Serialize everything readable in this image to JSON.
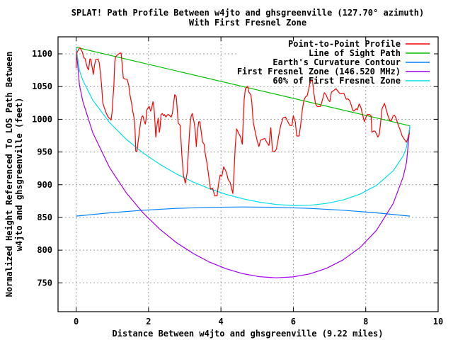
{
  "chart_data": {
    "type": "line",
    "title": "SPLAT! Path Profile Between w4jto and ghsgreenville (127.70° azimuth)",
    "subtitle": "With First Fresnel Zone",
    "xlabel": "Distance Between w4jto and ghsgreenville (9.22 miles)",
    "ylabel_line1": "Normalized Height Referenced To LOS Path Between",
    "ylabel_line2": "w4jto and ghsgreenville (feet)",
    "xlim": [
      -0.5,
      10
    ],
    "ylim": [
      706,
      1126
    ],
    "xticks": [
      0,
      2,
      4,
      6,
      8,
      10
    ],
    "yticks": [
      750,
      800,
      850,
      900,
      950,
      1000,
      1050,
      1100
    ],
    "grid": true,
    "legend_position": "top-right",
    "series": [
      {
        "name": "Point-to-Point Profile",
        "color": "#ff0000",
        "points": [
          [
            0,
            1078
          ],
          [
            0.01,
            1100
          ],
          [
            0.033,
            1102.9
          ],
          [
            0.065,
            1106.5
          ],
          [
            0.104,
            1109.4
          ],
          [
            0.13,
            1107.2
          ],
          [
            0.169,
            1102.9
          ],
          [
            0.215,
            1093.9
          ],
          [
            0.247,
            1092.8
          ],
          [
            0.28,
            1084.8
          ],
          [
            0.313,
            1078.3
          ],
          [
            0.345,
            1075.8
          ],
          [
            0.378,
            1092
          ],
          [
            0.404,
            1092
          ],
          [
            0.43,
            1083
          ],
          [
            0.475,
            1068.5
          ],
          [
            0.508,
            1083
          ],
          [
            0.54,
            1091.3
          ],
          [
            0.605,
            1092
          ],
          [
            0.638,
            1086.6
          ],
          [
            0.671,
            1070.4
          ],
          [
            0.703,
            1052.3
          ],
          [
            0.736,
            1025.2
          ],
          [
            0.768,
            1019.7
          ],
          [
            0.833,
            1008.9
          ],
          [
            0.885,
            1003.5
          ],
          [
            0.918,
            1001.7
          ],
          [
            0.964,
            998.8
          ],
          [
            0.996,
            1012.5
          ],
          [
            1.016,
            1030.6
          ],
          [
            1.042,
            1052.3
          ],
          [
            1.068,
            1088.4
          ],
          [
            1.094,
            1095.7
          ],
          [
            1.159,
            1099.3
          ],
          [
            1.211,
            1101.1
          ],
          [
            1.243,
            1101.1
          ],
          [
            1.263,
            1088.4
          ],
          [
            1.302,
            1063.1
          ],
          [
            1.354,
            1061.3
          ],
          [
            1.406,
            1061.3
          ],
          [
            1.452,
            1052.3
          ],
          [
            1.484,
            1037.8
          ],
          [
            1.536,
            1023.4
          ],
          [
            1.563,
            1012.5
          ],
          [
            1.602,
            1001.7
          ],
          [
            1.628,
            983.6
          ],
          [
            1.647,
            951
          ],
          [
            1.68,
            951
          ],
          [
            1.712,
            965.5
          ],
          [
            1.745,
            980
          ],
          [
            1.777,
            994.4
          ],
          [
            1.81,
            1003.5
          ],
          [
            1.842,
            1005.3
          ],
          [
            1.875,
            998
          ],
          [
            1.908,
            992.6
          ],
          [
            1.927,
            998
          ],
          [
            1.953,
            1014.3
          ],
          [
            1.992,
            1017.9
          ],
          [
            2.018,
            1019.7
          ],
          [
            2.057,
            1012.5
          ],
          [
            2.083,
            1016.1
          ],
          [
            2.122,
            1027
          ],
          [
            2.148,
            1019.7
          ],
          [
            2.168,
            1005.3
          ],
          [
            2.2,
            972.7
          ],
          [
            2.233,
            990.8
          ],
          [
            2.266,
            1001.7
          ],
          [
            2.298,
            980
          ],
          [
            2.318,
            987.2
          ],
          [
            2.344,
            1007.1
          ],
          [
            2.383,
            1008.9
          ],
          [
            2.415,
            1005.3
          ],
          [
            2.441,
            1007.1
          ],
          [
            2.48,
            1003.5
          ],
          [
            2.526,
            1007.1
          ],
          [
            2.559,
            1007
          ],
          [
            2.624,
            1003.4
          ],
          [
            2.657,
            1008.8
          ],
          [
            2.722,
            1037.7
          ],
          [
            2.767,
            1034.1
          ],
          [
            2.82,
            994.3
          ],
          [
            2.872,
            990.7
          ],
          [
            2.917,
            947.3
          ],
          [
            2.963,
            914.8
          ],
          [
            3.015,
            902.1
          ],
          [
            3.067,
            918.4
          ],
          [
            3.113,
            961.8
          ],
          [
            3.145,
            990.7
          ],
          [
            3.178,
            1005.2
          ],
          [
            3.21,
            1008.8
          ],
          [
            3.262,
            994.3
          ],
          [
            3.288,
            983.5
          ],
          [
            3.321,
            958.2
          ],
          [
            3.34,
            976.2
          ],
          [
            3.386,
            996.1
          ],
          [
            3.418,
            996.1
          ],
          [
            3.457,
            979.9
          ],
          [
            3.49,
            965.4
          ],
          [
            3.536,
            961.8
          ],
          [
            3.568,
            947.3
          ],
          [
            3.614,
            932.9
          ],
          [
            3.666,
            911.2
          ],
          [
            3.712,
            893.1
          ],
          [
            3.764,
            894.9
          ],
          [
            3.796,
            889.5
          ],
          [
            3.829,
            883
          ],
          [
            3.894,
            883
          ],
          [
            3.926,
            898.5
          ],
          [
            3.978,
            914.8
          ],
          [
            4.024,
            913
          ],
          [
            4.076,
            927.4
          ],
          [
            4.109,
            923.8
          ],
          [
            4.154,
            918.4
          ],
          [
            4.2,
            907.6
          ],
          [
            4.252,
            903.9
          ],
          [
            4.284,
            896.7
          ],
          [
            4.33,
            886.6
          ],
          [
            4.362,
            920.2
          ],
          [
            4.395,
            958.2
          ],
          [
            4.434,
            985.3
          ],
          [
            4.48,
            979.9
          ],
          [
            4.545,
            972.6
          ],
          [
            4.59,
            961.8
          ],
          [
            4.61,
            987.1
          ],
          [
            4.643,
            1030.5
          ],
          [
            4.675,
            1046.7
          ],
          [
            4.74,
            1050.4
          ],
          [
            4.773,
            1041.3
          ],
          [
            4.825,
            1037.7
          ],
          [
            4.851,
            1026.9
          ],
          [
            4.89,
            996.1
          ],
          [
            4.936,
            983.5
          ],
          [
            5.001,
            967.2
          ],
          [
            5.047,
            958.2
          ],
          [
            5.098,
            968.3
          ],
          [
            5.209,
            970.8
          ],
          [
            5.261,
            965.4
          ],
          [
            5.326,
            960
          ],
          [
            5.378,
            987.1
          ],
          [
            5.424,
            950.9
          ],
          [
            5.489,
            950.9
          ],
          [
            5.535,
            954.6
          ],
          [
            5.6,
            976.2
          ],
          [
            5.652,
            990.7
          ],
          [
            5.717,
            1002.3
          ],
          [
            5.782,
            1003.4
          ],
          [
            5.834,
            997.9
          ],
          [
            5.899,
            990.7
          ],
          [
            5.964,
            990.7
          ],
          [
            5.997,
            1005.2
          ],
          [
            6.055,
            996.1
          ],
          [
            6.094,
            974.4
          ],
          [
            6.16,
            974.4
          ],
          [
            6.205,
            992.5
          ],
          [
            6.251,
            1016
          ],
          [
            6.29,
            1028.7
          ],
          [
            6.335,
            1034.1
          ],
          [
            6.381,
            1035.9
          ],
          [
            6.42,
            1044.9
          ],
          [
            6.466,
            1057.6
          ],
          [
            6.498,
            1059.4
          ],
          [
            6.531,
            1057.6
          ],
          [
            6.563,
            1041.3
          ],
          [
            6.615,
            1023.2
          ],
          [
            6.661,
            1019.6
          ],
          [
            6.746,
            1019.6
          ],
          [
            6.791,
            1026.9
          ],
          [
            6.856,
            1040.6
          ],
          [
            6.902,
            1037.7
          ],
          [
            6.954,
            1030.5
          ],
          [
            7.006,
            1026.9
          ],
          [
            7.052,
            1041.3
          ],
          [
            7.117,
            1044.2
          ],
          [
            7.182,
            1046.7
          ],
          [
            7.228,
            1043.1
          ],
          [
            7.28,
            1039.5
          ],
          [
            7.397,
            1039.5
          ],
          [
            7.462,
            1030.5
          ],
          [
            7.508,
            1031.2
          ],
          [
            7.553,
            1028.7
          ],
          [
            7.592,
            1023.2
          ],
          [
            7.638,
            1014.2
          ],
          [
            7.67,
            1012.4
          ],
          [
            7.735,
            1016
          ],
          [
            7.768,
            1014.5
          ],
          [
            7.82,
            1023.5
          ],
          [
            7.866,
            1018.1
          ],
          [
            7.911,
            1007.2
          ],
          [
            7.963,
            996.4
          ],
          [
            7.996,
            1001.8
          ],
          [
            8.041,
            1007.2
          ],
          [
            8.107,
            1007.2
          ],
          [
            8.146,
            1005.4
          ],
          [
            8.172,
            980.1
          ],
          [
            8.211,
            981.9
          ],
          [
            8.256,
            981.9
          ],
          [
            8.289,
            978.3
          ],
          [
            8.334,
            972.9
          ],
          [
            8.373,
            976.5
          ],
          [
            8.406,
            992.8
          ],
          [
            8.452,
            1016.3
          ],
          [
            8.517,
            1024.2
          ],
          [
            8.549,
            1018.1
          ],
          [
            8.614,
            1005.4
          ],
          [
            8.666,
            998.2
          ],
          [
            8.712,
            998.2
          ],
          [
            8.757,
            1005.4
          ],
          [
            8.796,
            1006.1
          ],
          [
            8.842,
            1001.1
          ],
          [
            8.888,
            992.8
          ],
          [
            8.94,
            985.5
          ],
          [
            9.005,
            974.7
          ],
          [
            9.07,
            969.3
          ],
          [
            9.122,
            964.9
          ],
          [
            9.154,
            969.3
          ],
          [
            9.187,
            976.5
          ],
          [
            9.213,
            978.3
          ]
        ]
      },
      {
        "name": "Line of Sight Path",
        "color": "#00c000",
        "points": [
          [
            0,
            1110
          ],
          [
            9.22,
            990
          ]
        ]
      },
      {
        "name": "Earth's Curvature Contour",
        "color": "#0080ff",
        "points": [
          [
            0,
            852
          ],
          [
            0.922,
            857
          ],
          [
            1.844,
            861
          ],
          [
            2.766,
            863.8
          ],
          [
            3.688,
            865.4
          ],
          [
            4.61,
            866
          ],
          [
            5.532,
            865.4
          ],
          [
            6.454,
            863.8
          ],
          [
            7.376,
            861
          ],
          [
            8.298,
            857
          ],
          [
            9.22,
            852
          ]
        ]
      },
      {
        "name": "First Fresnel Zone (146.520 MHz)",
        "color": "#a000f0",
        "points": [
          [
            0,
            1110
          ],
          [
            0.092,
            1051.9
          ],
          [
            0.184,
            1027.5
          ],
          [
            0.461,
            979.3
          ],
          [
            0.922,
            926.4
          ],
          [
            1.383,
            887.8
          ],
          [
            1.844,
            857.2
          ],
          [
            2.305,
            832.3
          ],
          [
            2.766,
            811.7
          ],
          [
            3.227,
            795.2
          ],
          [
            3.688,
            781.7
          ],
          [
            4.149,
            771.4
          ],
          [
            4.61,
            764
          ],
          [
            5.071,
            759.4
          ],
          [
            5.532,
            757.7
          ],
          [
            5.993,
            759.2
          ],
          [
            6.454,
            763.7
          ],
          [
            6.915,
            772.3
          ],
          [
            7.376,
            785.2
          ],
          [
            7.837,
            803.8
          ],
          [
            8.298,
            830.4
          ],
          [
            8.759,
            871.3
          ],
          [
            9.036,
            912.3
          ],
          [
            9.128,
            934.3
          ],
          [
            9.22,
            990
          ]
        ]
      },
      {
        "name": "60% of First Fresnel Zone",
        "color": "#00e0e8",
        "points": [
          [
            0,
            1110
          ],
          [
            0.092,
            1074.7
          ],
          [
            0.184,
            1059.5
          ],
          [
            0.461,
            1029.2
          ],
          [
            0.922,
            995
          ],
          [
            1.383,
            969.5
          ],
          [
            1.844,
            948.7
          ],
          [
            2.305,
            931.4
          ],
          [
            2.766,
            916.6
          ],
          [
            3.227,
            904.3
          ],
          [
            3.688,
            893.8
          ],
          [
            4.149,
            885.2
          ],
          [
            4.61,
            878.4
          ],
          [
            5.071,
            873.2
          ],
          [
            5.532,
            869.8
          ],
          [
            5.993,
            868.3
          ],
          [
            6.454,
            868.6
          ],
          [
            6.915,
            871.4
          ],
          [
            7.376,
            876.7
          ],
          [
            7.837,
            885.5
          ],
          [
            8.298,
            899
          ],
          [
            8.759,
            921.2
          ],
          [
            9.036,
            944.3
          ],
          [
            9.128,
            957.1
          ],
          [
            9.22,
            990
          ]
        ]
      }
    ]
  }
}
